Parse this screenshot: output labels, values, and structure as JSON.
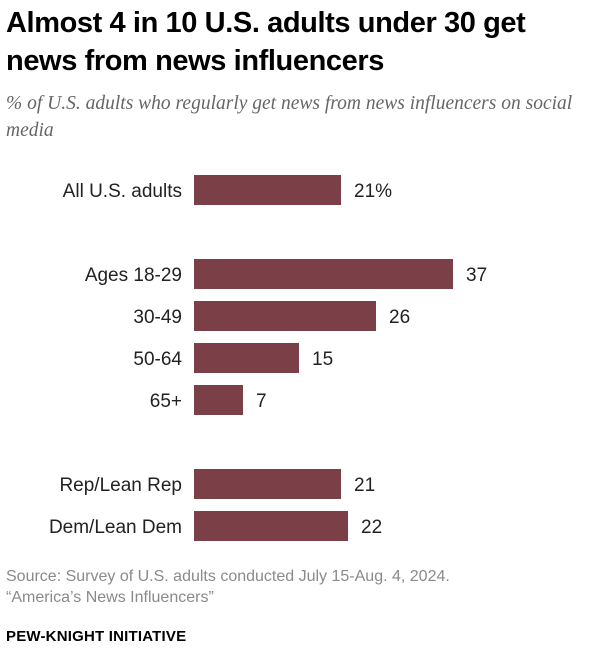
{
  "title": "Almost 4 in 10 U.S. adults under 30 get news from news influencers",
  "subtitle": "% of U.S. adults who regularly get news from news influencers on social media",
  "bar_color": "#7a3f47",
  "chart_data": {
    "type": "bar",
    "orientation": "horizontal",
    "title": "Almost 4 in 10 U.S. adults under 30 get news from news influencers",
    "subtitle": "% of U.S. adults who regularly get news from news influencers on social media",
    "categories": [
      "All U.S. adults",
      "Ages 18-29",
      "30-49",
      "50-64",
      "65+",
      "Rep/Lean Rep",
      "Dem/Lean Dem"
    ],
    "values": [
      21,
      37,
      26,
      15,
      7,
      21,
      22
    ],
    "value_labels": [
      "21%",
      "37",
      "26",
      "15",
      "7",
      "21",
      "22"
    ],
    "groups": [
      [
        "All U.S. adults"
      ],
      [
        "Ages 18-29",
        "30-49",
        "50-64",
        "65+"
      ],
      [
        "Rep/Lean Rep",
        "Dem/Lean Dem"
      ]
    ],
    "xlim": [
      0,
      37
    ],
    "grid": false,
    "legend": "none"
  },
  "footer": {
    "source_line1": "Source: Survey of U.S. adults conducted July 15-Aug. 4, 2024.",
    "source_line2": "“America’s News Influencers”",
    "brand": "PEW-KNIGHT INITIATIVE"
  }
}
